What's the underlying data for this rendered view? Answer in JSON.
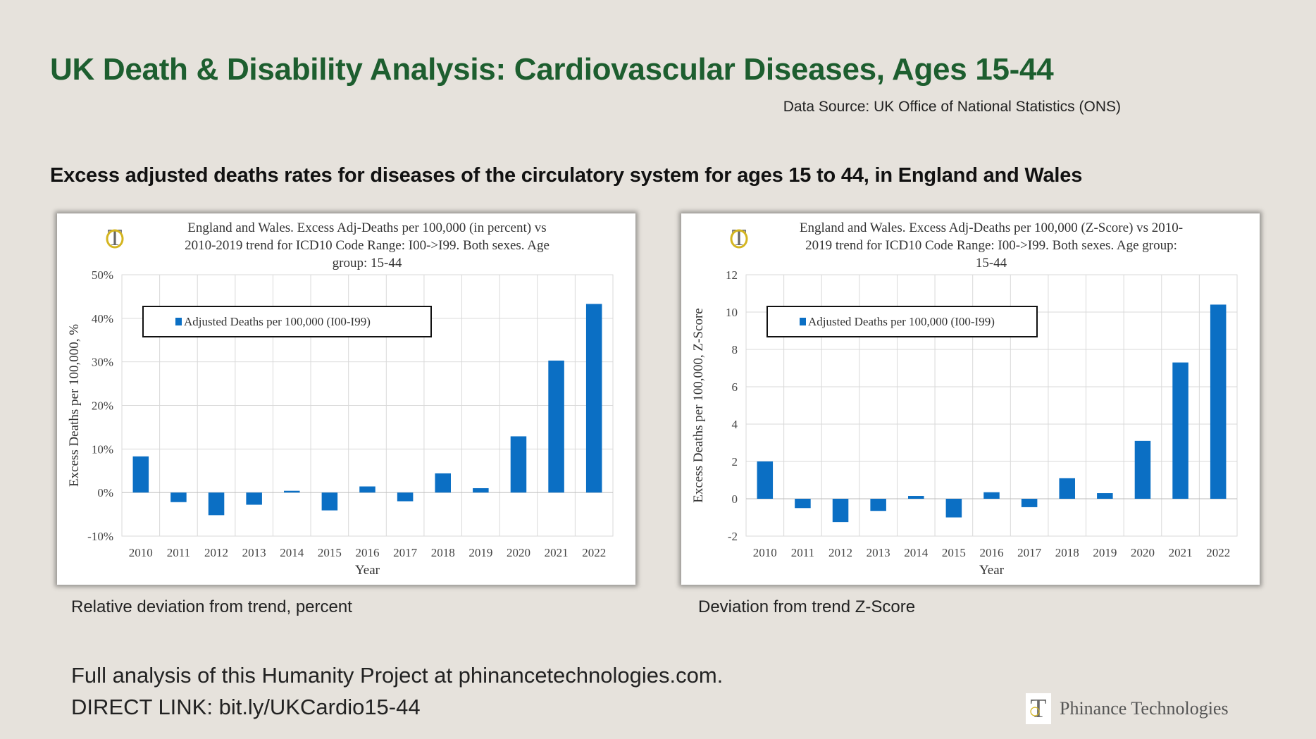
{
  "header": {
    "title": "UK Death & Disability Analysis: Cardiovascular Diseases, Ages 15-44",
    "source": "Data Source: UK Office of National Statistics (ONS)",
    "subheading": "Excess adjusted deaths rates for diseases of the circulatory system for ages 15 to 44, in England and Wales"
  },
  "captions": {
    "left": "Relative deviation from trend, percent",
    "right": "Deviation from trend Z-Score"
  },
  "footer": {
    "line1": "Full analysis of this Humanity Project at phinancetechnologies.com.",
    "line2": "DIRECT LINK: bit.ly/UKCardio15-44",
    "brand": "Phinance Technologies"
  },
  "colors": {
    "bar": "#0b6fc4",
    "title": "#1d5e2f",
    "logo_gold": "#d4b520"
  },
  "chart_data": [
    {
      "type": "bar",
      "title_lines": [
        "England and Wales. Excess Adj-Deaths per 100,000 (in percent) vs",
        "2010-2019 trend for ICD10 Code Range: I00->I99. Both sexes. Age",
        "group: 15-44"
      ],
      "xlabel": "Year",
      "ylabel": "Excess Deaths per 100,000, %",
      "legend": "Adjusted Deaths per 100,000 (I00-I99)",
      "legend_position": "top-left",
      "grid": true,
      "categories": [
        "2010",
        "2011",
        "2012",
        "2013",
        "2014",
        "2015",
        "2016",
        "2017",
        "2018",
        "2019",
        "2020",
        "2021",
        "2022"
      ],
      "values": [
        8.3,
        -2.2,
        -5.2,
        -2.8,
        0.4,
        -4.1,
        1.4,
        -2.0,
        4.4,
        1.0,
        12.9,
        30.3,
        43.3
      ],
      "ylim": [
        -10,
        50
      ],
      "yticks": [
        -10,
        0,
        10,
        20,
        30,
        40,
        50
      ],
      "ytick_labels": [
        "-10%",
        "0%",
        "10%",
        "20%",
        "30%",
        "40%",
        "50%"
      ]
    },
    {
      "type": "bar",
      "title_lines": [
        "England and Wales. Excess Adj-Deaths per 100,000 (Z-Score) vs 2010-",
        "2019 trend for ICD10 Code Range: I00->I99. Both sexes. Age group:",
        "15-44"
      ],
      "xlabel": "Year",
      "ylabel": "Excess Deaths per 100,000, Z-Score",
      "legend": "Adjusted Deaths per 100,000 (I00-I99)",
      "legend_position": "top-left",
      "grid": true,
      "categories": [
        "2010",
        "2011",
        "2012",
        "2013",
        "2014",
        "2015",
        "2016",
        "2017",
        "2018",
        "2019",
        "2020",
        "2021",
        "2022"
      ],
      "values": [
        2.0,
        -0.5,
        -1.25,
        -0.65,
        0.15,
        -1.0,
        0.35,
        -0.45,
        1.1,
        0.3,
        3.1,
        7.3,
        10.4
      ],
      "ylim": [
        -2,
        12
      ],
      "yticks": [
        -2,
        0,
        2,
        4,
        6,
        8,
        10,
        12
      ],
      "ytick_labels": [
        "-2",
        "0",
        "2",
        "4",
        "6",
        "8",
        "10",
        "12"
      ]
    }
  ]
}
